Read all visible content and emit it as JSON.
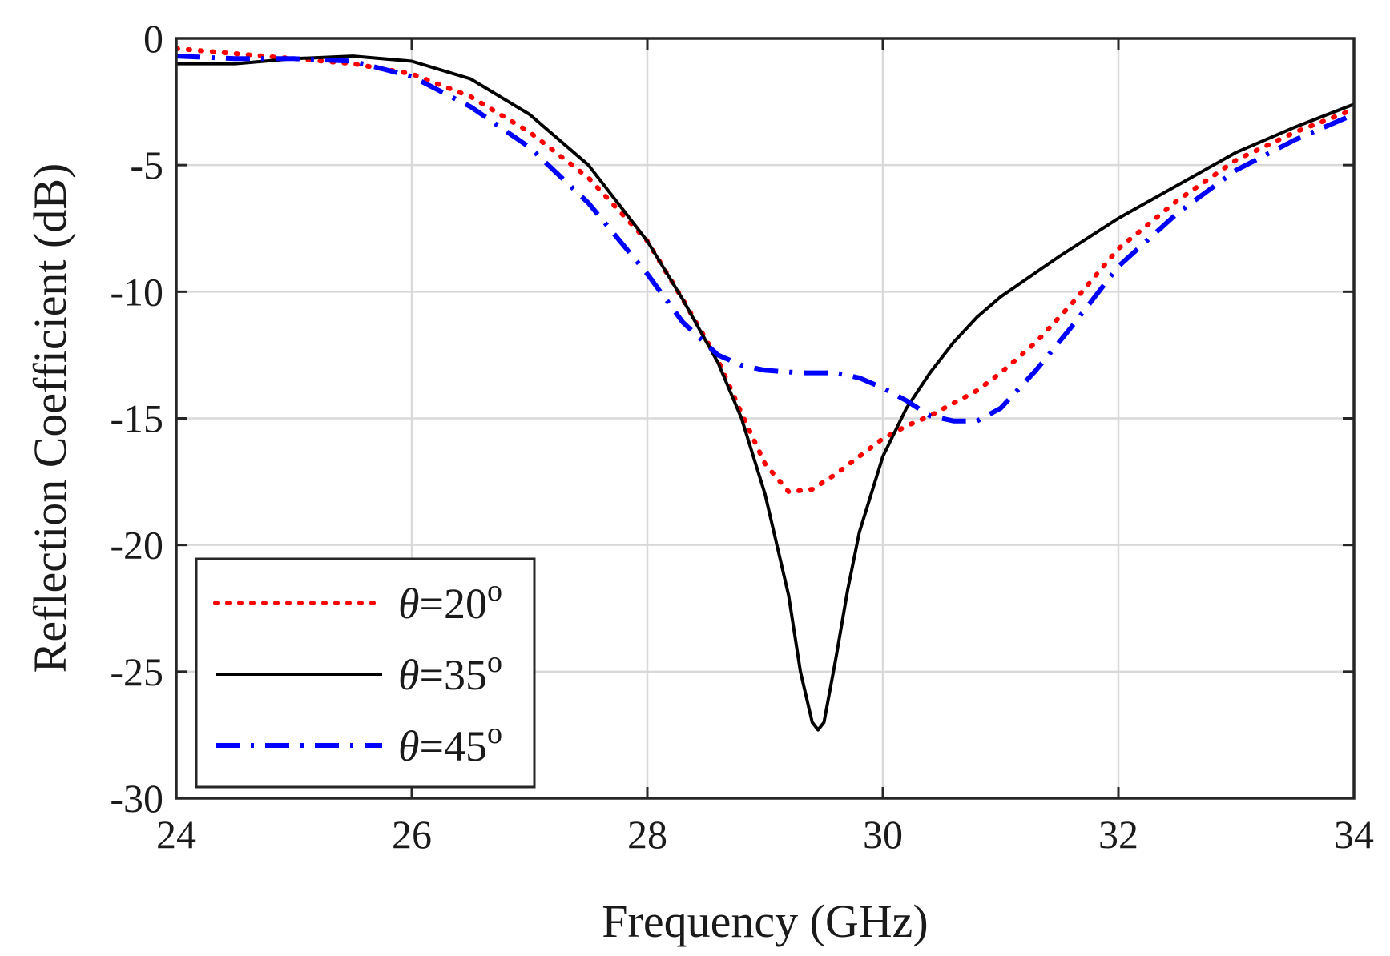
{
  "chart_data": {
    "type": "line",
    "title": "",
    "xlabel": "Frequency (GHz)",
    "ylabel": "Reflection Coefficient (dB)",
    "xlim": [
      24,
      34
    ],
    "ylim": [
      -30,
      0
    ],
    "xticks": [
      24,
      26,
      28,
      30,
      32,
      34
    ],
    "yticks": [
      0,
      -5,
      -10,
      -15,
      -20,
      -25,
      -30
    ],
    "xtick_labels": [
      "24",
      "26",
      "28",
      "30",
      "32",
      "34"
    ],
    "ytick_labels": [
      "0",
      "-5",
      "-10",
      "-15",
      "-20",
      "-25",
      "-30"
    ],
    "grid": true,
    "legend_position": "bottom-left",
    "series": [
      {
        "name": "θ=20°",
        "symbol": "θ",
        "label_text": "=20",
        "label_sup": "o",
        "color": "#ff0000",
        "style": "dotted",
        "x": [
          24.0,
          24.5,
          25.0,
          25.5,
          26.0,
          26.5,
          27.0,
          27.5,
          28.0,
          28.3,
          28.6,
          28.8,
          29.0,
          29.2,
          29.4,
          29.6,
          29.8,
          30.0,
          30.2,
          30.4,
          30.6,
          30.8,
          31.0,
          31.3,
          31.6,
          32.0,
          32.5,
          33.0,
          33.5,
          34.0
        ],
        "y": [
          -0.4,
          -0.6,
          -0.8,
          -1.0,
          -1.4,
          -2.3,
          -3.7,
          -5.5,
          -8.0,
          -10.3,
          -12.7,
          -14.8,
          -16.8,
          -17.9,
          -17.8,
          -17.2,
          -16.5,
          -15.8,
          -15.3,
          -14.9,
          -14.4,
          -13.9,
          -13.2,
          -12.0,
          -10.5,
          -8.3,
          -6.4,
          -4.8,
          -3.7,
          -2.8
        ]
      },
      {
        "name": "θ=35°",
        "symbol": "θ",
        "label_text": "=35",
        "label_sup": "o",
        "color": "#000000",
        "style": "solid",
        "x": [
          24.0,
          24.5,
          25.0,
          25.5,
          26.0,
          26.5,
          27.0,
          27.5,
          28.0,
          28.3,
          28.6,
          28.8,
          29.0,
          29.2,
          29.3,
          29.4,
          29.45,
          29.5,
          29.6,
          29.7,
          29.8,
          30.0,
          30.2,
          30.4,
          30.6,
          30.8,
          31.0,
          31.5,
          32.0,
          32.5,
          33.0,
          33.5,
          34.0
        ],
        "y": [
          -1.0,
          -1.0,
          -0.8,
          -0.7,
          -0.9,
          -1.6,
          -3.0,
          -5.0,
          -8.0,
          -10.3,
          -12.8,
          -15.0,
          -18.0,
          -22.0,
          -25.0,
          -27.0,
          -27.3,
          -27.0,
          -24.5,
          -21.8,
          -19.5,
          -16.5,
          -14.6,
          -13.2,
          -12.0,
          -11.0,
          -10.2,
          -8.6,
          -7.1,
          -5.8,
          -4.5,
          -3.5,
          -2.6
        ]
      },
      {
        "name": "θ=45°",
        "symbol": "θ",
        "label_text": "=45",
        "label_sup": "o",
        "color": "#0000ff",
        "style": "dashdot",
        "x": [
          24.0,
          24.5,
          25.0,
          25.5,
          26.0,
          26.5,
          27.0,
          27.5,
          28.0,
          28.3,
          28.6,
          28.8,
          29.0,
          29.3,
          29.6,
          29.8,
          30.0,
          30.2,
          30.4,
          30.6,
          30.8,
          31.0,
          31.3,
          31.6,
          32.0,
          32.5,
          33.0,
          33.5,
          34.0
        ],
        "y": [
          -0.7,
          -0.8,
          -0.8,
          -0.9,
          -1.5,
          -2.7,
          -4.3,
          -6.5,
          -9.3,
          -11.2,
          -12.5,
          -12.9,
          -13.1,
          -13.2,
          -13.2,
          -13.4,
          -13.8,
          -14.3,
          -14.9,
          -15.1,
          -15.1,
          -14.6,
          -13.1,
          -11.4,
          -9.0,
          -6.9,
          -5.2,
          -4.0,
          -3.0
        ]
      }
    ]
  }
}
